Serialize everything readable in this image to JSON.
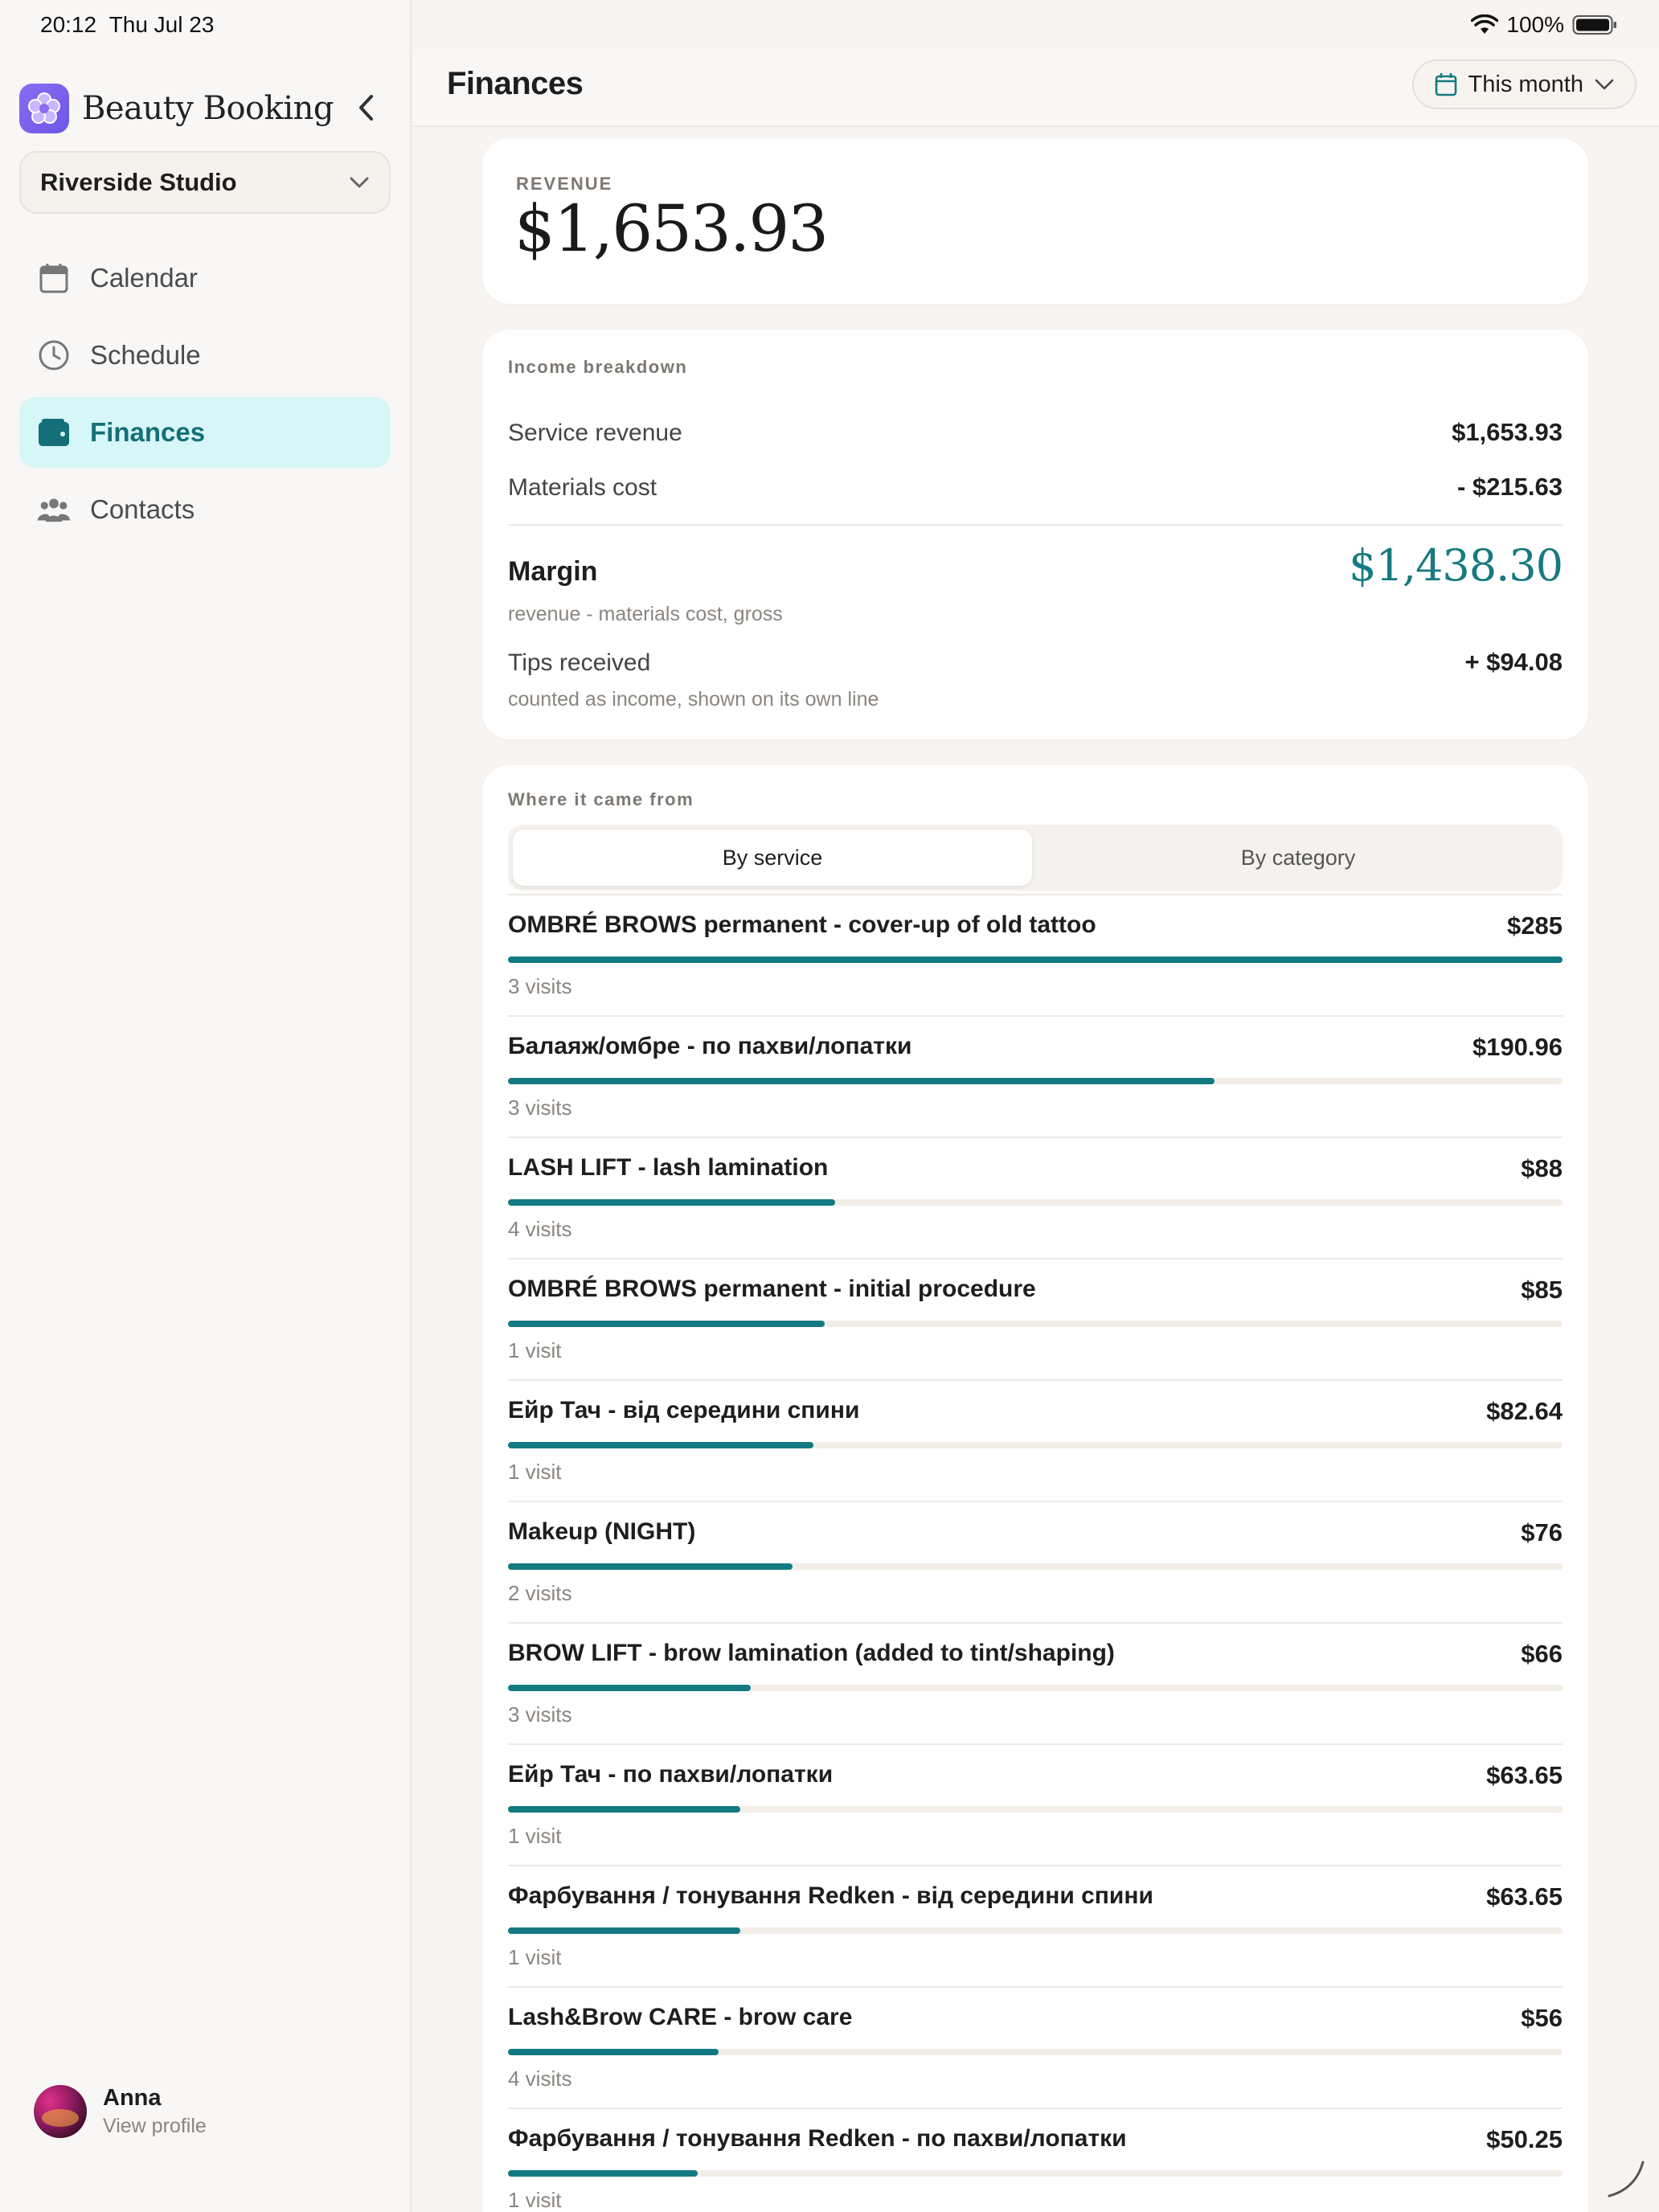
{
  "status_bar": {
    "time": "20:12",
    "date": "Thu Jul 23",
    "battery": "100%"
  },
  "sidebar": {
    "brand_name": "Beauty Booking",
    "studio": "Riverside Studio",
    "nav": [
      {
        "label": "Calendar",
        "icon": "calendar-icon"
      },
      {
        "label": "Schedule",
        "icon": "clock-icon"
      },
      {
        "label": "Finances",
        "icon": "wallet-icon",
        "active": true
      },
      {
        "label": "Contacts",
        "icon": "people-icon"
      }
    ],
    "profile": {
      "name": "Anna",
      "sub": "View profile"
    }
  },
  "header": {
    "title": "Finances",
    "period": "This month"
  },
  "revenue": {
    "label": "REVENUE",
    "value": "$1,653.93"
  },
  "breakdown": {
    "label": "Income breakdown",
    "service_revenue_label": "Service revenue",
    "service_revenue_value": "$1,653.93",
    "materials_label": "Materials cost",
    "materials_value": "- $215.63",
    "margin_label": "Margin",
    "margin_value": "$1,438.30",
    "margin_note": "revenue - materials cost, gross",
    "tips_label": "Tips received",
    "tips_value": "+ $94.08",
    "tips_note": "counted as income, shown on its own line"
  },
  "sources": {
    "label": "Where it came from",
    "tabs": [
      "By service",
      "By category"
    ],
    "active_tab": 0,
    "accent": "#137a82",
    "items": [
      {
        "name": "OMBRÉ BROWS permanent - cover-up of old tattoo",
        "amount": "$285",
        "visits": "3 visits",
        "share": 1.0
      },
      {
        "name": "Балаяж/омбре - по пахви/лопатки",
        "amount": "$190.96",
        "visits": "3 visits",
        "share": 0.67
      },
      {
        "name": "LASH LIFT - lash lamination",
        "amount": "$88",
        "visits": "4 visits",
        "share": 0.31
      },
      {
        "name": "OMBRÉ BROWS permanent - initial procedure",
        "amount": "$85",
        "visits": "1 visit",
        "share": 0.3
      },
      {
        "name": "Ейр Тач - від середини спини",
        "amount": "$82.64",
        "visits": "1 visit",
        "share": 0.29
      },
      {
        "name": "Makeup (NIGHT)",
        "amount": "$76",
        "visits": "2 visits",
        "share": 0.27
      },
      {
        "name": "BROW LIFT - brow lamination (added to tint/shaping)",
        "amount": "$66",
        "visits": "3 visits",
        "share": 0.23
      },
      {
        "name": "Ейр Тач - по пахви/лопатки",
        "amount": "$63.65",
        "visits": "1 visit",
        "share": 0.22
      },
      {
        "name": "Фарбування / тонування Redken - від середини спини",
        "amount": "$63.65",
        "visits": "1 visit",
        "share": 0.22
      },
      {
        "name": "Lash&Brow CARE - brow care",
        "amount": "$56",
        "visits": "4 visits",
        "share": 0.2
      },
      {
        "name": "Фарбування / тонування Redken - по пахви/лопатки",
        "amount": "$50.25",
        "visits": "1 visit",
        "share": 0.18
      }
    ]
  }
}
